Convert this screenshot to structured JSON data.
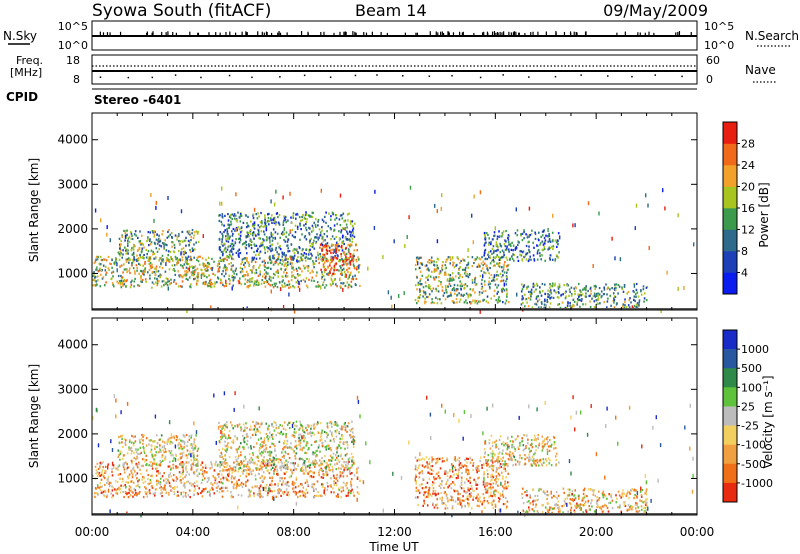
{
  "header": {
    "title": "Syowa South (fitACF)",
    "beam": "Beam 14",
    "date": "09/May/2009"
  },
  "top_panels": {
    "nsky_label": "N.Sky",
    "nsky_ticks": [
      "10^5",
      "10^0"
    ],
    "nsearch_label": "N.Search",
    "nsearch_ticks": [
      "10^5",
      "10^0"
    ],
    "freq_label_line1": "Freq.",
    "freq_label_line2": "[MHz]",
    "freq_ticks": [
      "18",
      "8"
    ],
    "nave_label": "Nave",
    "nave_ticks": [
      "60",
      "0"
    ],
    "cpid_label": "CPID",
    "cpid_value": "Stereo -6401"
  },
  "chart_data": [
    {
      "type": "heatmap",
      "name": "power",
      "ylabel": "Slant Range [km]",
      "yticks": [
        1000,
        2000,
        3000,
        4000
      ],
      "ylim": [
        180,
        4600
      ],
      "xlim": [
        0,
        24
      ],
      "colorbar": {
        "label": "Power [dB]",
        "ticks": [
          "4",
          "8",
          "12",
          "16",
          "20",
          "24",
          "28"
        ],
        "colors": [
          "#0a1cf0",
          "#1d3fb8",
          "#2e6a8a",
          "#3b9a4c",
          "#a8c51f",
          "#f2a12a",
          "#f06a1a",
          "#e81e10"
        ]
      },
      "regions": [
        {
          "t0": 0.0,
          "t1": 10.6,
          "r0": 700,
          "r1": 1400,
          "level": 0.55
        },
        {
          "t0": 1.0,
          "t1": 4.2,
          "r0": 1300,
          "r1": 2000,
          "level": 0.45
        },
        {
          "t0": 5.0,
          "t1": 10.4,
          "r0": 1300,
          "r1": 2400,
          "level": 0.35
        },
        {
          "t0": 9.0,
          "t1": 10.5,
          "r0": 1000,
          "r1": 1700,
          "level": 0.85
        },
        {
          "t0": 12.8,
          "t1": 16.5,
          "r0": 350,
          "r1": 1400,
          "level": 0.5
        },
        {
          "t0": 15.5,
          "t1": 18.5,
          "r0": 1300,
          "r1": 2000,
          "level": 0.3
        },
        {
          "t0": 17.0,
          "t1": 22.0,
          "r0": 250,
          "r1": 800,
          "level": 0.4
        }
      ]
    },
    {
      "type": "heatmap",
      "name": "velocity",
      "ylabel": "Slant Range [km]",
      "yticks": [
        1000,
        2000,
        3000,
        4000
      ],
      "ylim": [
        180,
        4600
      ],
      "xlim": [
        0,
        24
      ],
      "xticks": [
        "00:00",
        "04:00",
        "08:00",
        "12:00",
        "16:00",
        "20:00",
        "00:00"
      ],
      "xlabel": "Time UT",
      "colorbar": {
        "label": "Velocity [m s⁻¹]",
        "ticks": [
          "1000",
          "500",
          "100",
          "25",
          "-25",
          "-100",
          "-500",
          "-1000"
        ],
        "colors": [
          "#1a2cc8",
          "#2a58a0",
          "#2f8a4a",
          "#5ec23a",
          "#bcbcbc",
          "#f2d060",
          "#f0a040",
          "#f07018",
          "#e82a10"
        ]
      },
      "regions": [
        {
          "t0": 0.0,
          "t1": 10.6,
          "r0": 600,
          "r1": 1400,
          "level": 0.7
        },
        {
          "t0": 1.0,
          "t1": 4.2,
          "r0": 1300,
          "r1": 2000,
          "level": 0.6
        },
        {
          "t0": 5.0,
          "t1": 10.4,
          "r0": 1200,
          "r1": 2300,
          "level": 0.55
        },
        {
          "t0": 12.8,
          "t1": 16.5,
          "r0": 350,
          "r1": 1500,
          "level": 0.75
        },
        {
          "t0": 15.5,
          "t1": 18.5,
          "r0": 1300,
          "r1": 2000,
          "level": 0.6
        },
        {
          "t0": 17.0,
          "t1": 22.0,
          "r0": 250,
          "r1": 800,
          "level": 0.65
        }
      ]
    }
  ]
}
